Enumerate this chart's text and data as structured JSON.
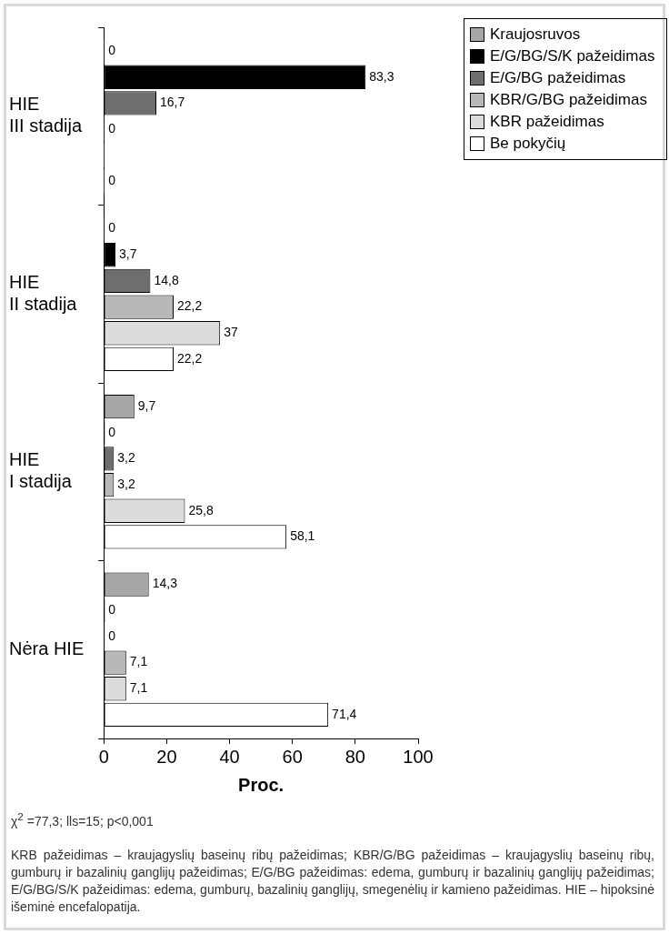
{
  "chart_data": {
    "type": "bar",
    "orientation": "horizontal",
    "categories": [
      "HIE\nIII stadija",
      "HIE\nII stadija",
      "HIE\nI stadija",
      "Nėra HIE"
    ],
    "series": [
      {
        "name": "Kraujosruvos",
        "color": "#a6a6a6",
        "values": [
          0,
          0,
          9.7,
          14.3
        ],
        "value_labels": [
          "0",
          "0",
          "9,7",
          "14,3"
        ]
      },
      {
        "name": "E/G/BG/S/K pažeidimas",
        "color": "#000000",
        "values": [
          83.3,
          3.7,
          0,
          0
        ],
        "value_labels": [
          "83,3",
          "3,7",
          "0",
          "0"
        ]
      },
      {
        "name": "E/G/BG pažeidimas",
        "color": "#6e6e6e",
        "values": [
          16.7,
          14.8,
          3.2,
          0
        ],
        "value_labels": [
          "16,7",
          "14,8",
          "3,2",
          "0"
        ]
      },
      {
        "name": "KBR/G/BG pažeidimas",
        "color": "#b8b8b8",
        "values": [
          0,
          22.2,
          3.2,
          7.1
        ],
        "value_labels": [
          "0",
          "22,2",
          "3,2",
          "7,1"
        ]
      },
      {
        "name": "KBR pažeidimas",
        "color": "#dcdcdc",
        "values": [
          0,
          37,
          25.8,
          7.1
        ],
        "value_labels": [
          null,
          "37",
          "25,8",
          "7,1"
        ]
      },
      {
        "name": "Be pokyčių",
        "color": "#ffffff",
        "values": [
          0,
          22.2,
          58.1,
          71.4
        ],
        "value_labels": [
          "0",
          "22,2",
          "58,1",
          "71,4"
        ]
      }
    ],
    "xlim": [
      0,
      100
    ],
    "xticks": [
      0,
      20,
      40,
      60,
      80,
      100
    ],
    "xlabel": "Proc.",
    "grid": false,
    "legend": "top right",
    "annotations": [
      "χ$^{2}$ =77,3; lls=15; p<0,001",
      "KRB pažeidimas – kraujagyslių baseinų ribų pažeidimas; KBR/G/BG pažeidimas – kraujagyslių baseinų ribų, gumburų ir bazalinių ganglijų pažeidimas; E/G/BG pažeidimas: edema, gumburų ir bazalinių ganglijų pažeidimas; E/G/BG/S/K pažeidimas: edema, gumburų, bazalinių ganglijų, smegenėlių ir kamieno pažeidimas. HIE – hipoksinė išeminė encefalopatija."
    ]
  }
}
